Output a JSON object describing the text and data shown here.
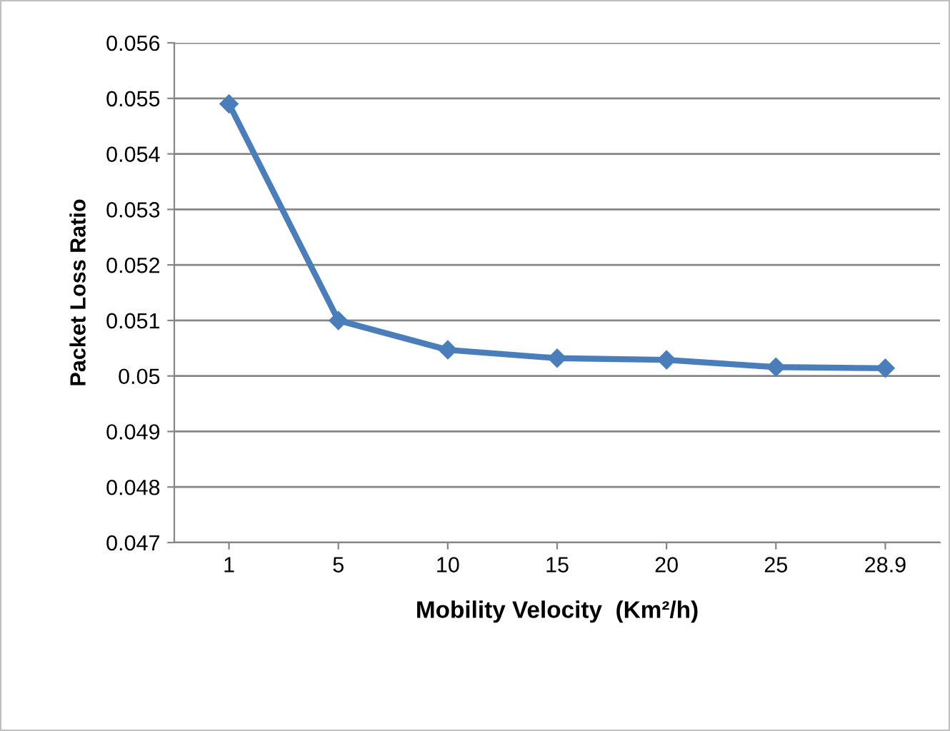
{
  "chart_data": {
    "type": "line",
    "xlabel": "Mobility Velocity  (Km²/h)",
    "ylabel": "Packet Loss Ratio",
    "categories": [
      "1",
      "5",
      "10",
      "15",
      "20",
      "25",
      "28.9"
    ],
    "series": [
      {
        "color": "#4a7ebb",
        "values": [
          0.0549,
          0.051,
          0.05047,
          0.05032,
          0.05029,
          0.05016,
          0.05014
        ]
      }
    ],
    "ylim": [
      0.047,
      0.056
    ],
    "yticks": [
      0.047,
      0.048,
      0.049,
      0.05,
      0.051,
      0.052,
      0.053,
      0.054,
      0.055,
      0.056
    ],
    "grid": "y",
    "marker": "diamond",
    "line_style": "solid",
    "legend": false
  }
}
